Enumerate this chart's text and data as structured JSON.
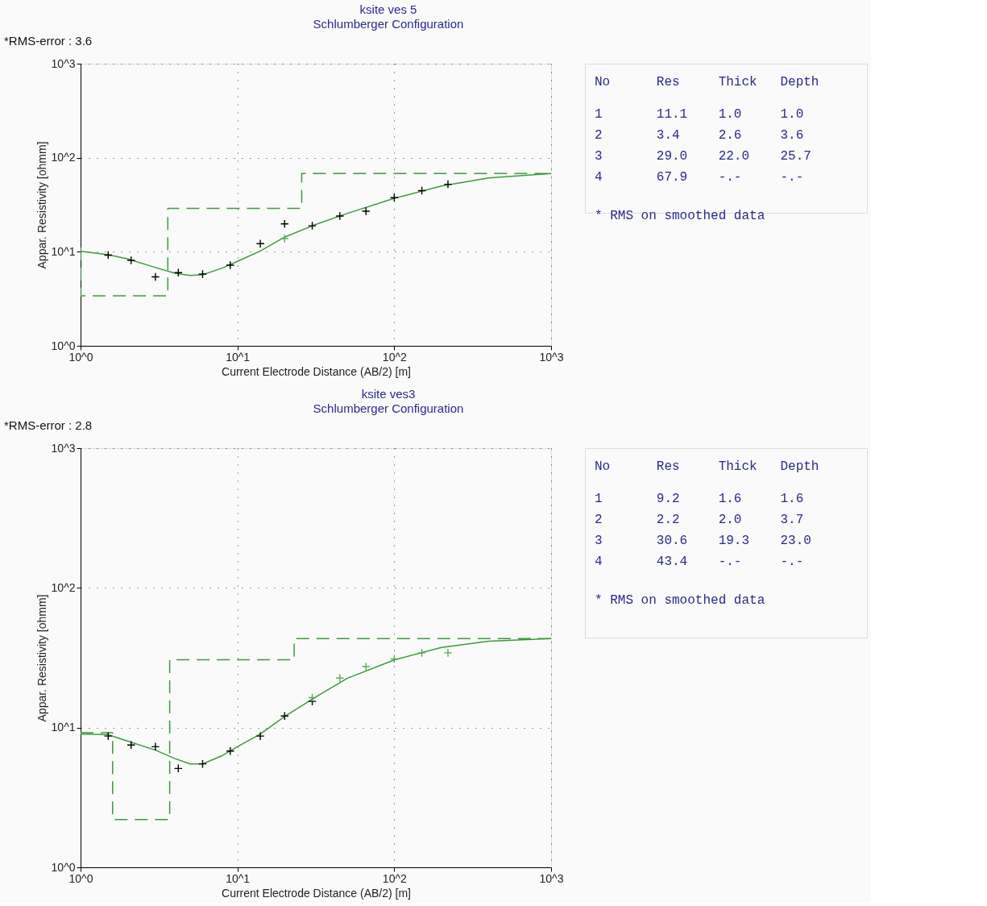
{
  "chart_data": [
    {
      "type": "line",
      "title": "ksite ves 5",
      "subtitle": "Schlumberger Configuration",
      "xlabel": "Current Electrode Distance (AB/2) [m]",
      "ylabel": "Appar. Resistivity [ohmm]",
      "annotations": [
        "*RMS-error :  3.6"
      ],
      "log": "xy",
      "grid": true,
      "xlim": [
        1,
        1000
      ],
      "ylim": [
        1,
        1000
      ],
      "xticks": [
        {
          "value": 1,
          "label": "10^0"
        },
        {
          "value": 10,
          "label": "10^1"
        },
        {
          "value": 100,
          "label": "10^2"
        },
        {
          "value": 1000,
          "label": "10^3"
        }
      ],
      "yticks": [
        {
          "value": 1,
          "label": "10^0"
        },
        {
          "value": 10,
          "label": "10^1"
        },
        {
          "value": 100,
          "label": "10^2"
        },
        {
          "value": 1000,
          "label": "10^3"
        }
      ],
      "series": [
        {
          "type": "line",
          "line_style": "dashed",
          "color": "#3c9a3c",
          "x": [
            1,
            1,
            3.6,
            3.6,
            25.7,
            25.7,
            1000
          ],
          "values": [
            11.1,
            3.4,
            3.4,
            29.0,
            29.0,
            67.9,
            67.9
          ]
        },
        {
          "type": "line",
          "line_style": "solid",
          "color": "#3c9a3c",
          "x": [
            1,
            1.5,
            2,
            3,
            4,
            5,
            6,
            8,
            10,
            14,
            20,
            30,
            50,
            100,
            200,
            400,
            1000
          ],
          "values": [
            10.1,
            9.3,
            8.4,
            6.8,
            5.9,
            5.6,
            5.7,
            6.7,
            7.9,
            10.2,
            14.3,
            18.9,
            25.5,
            37,
            50,
            61,
            67.9
          ]
        },
        {
          "type": "scatter",
          "marker": "cross",
          "color": "#000000",
          "x": [
            1.5,
            2.1,
            3,
            4.2,
            6,
            9,
            14,
            20,
            30,
            45,
            66,
            100,
            150,
            220
          ],
          "values": [
            9.2,
            8.1,
            5.4,
            6.0,
            5.8,
            7.2,
            12.2,
            19.8,
            18.9,
            24.0,
            27.0,
            37.6,
            44.7,
            52.2
          ]
        },
        {
          "type": "scatter",
          "marker": "cross",
          "color": "#5aaa5a",
          "x": [
            20
          ],
          "values": [
            13.8
          ]
        }
      ]
    },
    {
      "type": "other",
      "annotations": [
        "No Res Thick Depth",
        "1 11.1 1.0 1.0",
        "2 3.4 2.6 3.6",
        "3 29.0 22.0 25.7",
        "4 67.9 -.- -.-",
        "* RMS on smoothed data"
      ]
    },
    {
      "type": "line",
      "title": "ksite ves3",
      "subtitle": "Schlumberger Configuration",
      "xlabel": "Current Electrode Distance (AB/2) [m]",
      "ylabel": "Appar. Resistivity [ohmm]",
      "annotations": [
        "*RMS-error :  2.8"
      ],
      "log": "xy",
      "grid": true,
      "xlim": [
        1,
        1000
      ],
      "ylim": [
        1,
        1000
      ],
      "xticks": [
        {
          "value": 1,
          "label": "10^0"
        },
        {
          "value": 10,
          "label": "10^1"
        },
        {
          "value": 100,
          "label": "10^2"
        },
        {
          "value": 1000,
          "label": "10^3"
        }
      ],
      "yticks": [
        {
          "value": 1,
          "label": "10^0"
        },
        {
          "value": 10,
          "label": "10^1"
        },
        {
          "value": 100,
          "label": "10^2"
        },
        {
          "value": 1000,
          "label": "10^3"
        }
      ],
      "series": [
        {
          "type": "line",
          "line_style": "dashed",
          "color": "#3c9a3c",
          "x": [
            1,
            1.6,
            1.6,
            3.7,
            3.7,
            23.0,
            23.0,
            1000
          ],
          "values": [
            9.2,
            9.2,
            2.2,
            2.2,
            30.6,
            30.6,
            43.4,
            43.4
          ]
        },
        {
          "type": "line",
          "line_style": "solid",
          "color": "#3c9a3c",
          "x": [
            1,
            1.5,
            2,
            3,
            4,
            5,
            6,
            8,
            10,
            14,
            20,
            30,
            50,
            100,
            200,
            400,
            1000
          ],
          "values": [
            9.0,
            8.9,
            8.0,
            6.9,
            6.0,
            5.5,
            5.5,
            6.3,
            7.3,
            9.0,
            12.0,
            16.0,
            22.5,
            30.5,
            37.5,
            41.5,
            43.4
          ]
        },
        {
          "type": "scatter",
          "marker": "cross",
          "color": "#000000",
          "x": [
            1.5,
            2.1,
            3,
            4.2,
            6,
            9,
            14,
            20,
            30
          ],
          "values": [
            8.7,
            7.5,
            7.3,
            5.1,
            5.5,
            6.8,
            8.7,
            12.1,
            15.4
          ]
        },
        {
          "type": "scatter",
          "marker": "cross",
          "color": "#5aaa5a",
          "x": [
            30,
            45,
            66,
            100,
            150,
            220
          ],
          "values": [
            16.4,
            22.6,
            27.3,
            31.0,
            34.3,
            34.3
          ]
        }
      ]
    },
    {
      "type": "other",
      "annotations": [
        "No Res Thick Depth",
        "1 9.2 1.6 1.6",
        "2 2.2 2.0 3.7",
        "3 30.6 19.3 23.0",
        "4 43.4 -.- -.-",
        "* RMS on smoothed data"
      ]
    }
  ]
}
